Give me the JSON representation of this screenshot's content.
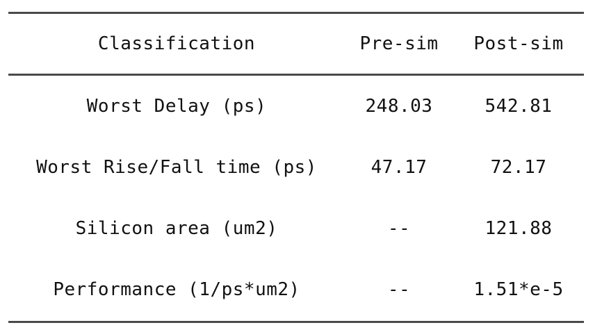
{
  "table": {
    "headers": [
      "Classification",
      "Pre-sim",
      "Post-sim"
    ],
    "rows": [
      [
        "Worst Delay (ps)",
        "248.03",
        "542.81"
      ],
      [
        "Worst Rise/Fall time (ps)",
        "47.17",
        "72.17"
      ],
      [
        "Silicon area (um2)",
        "--",
        "121.88"
      ],
      [
        "Performance (1/ps*um2)",
        "--",
        "1.51*e-5"
      ]
    ]
  }
}
